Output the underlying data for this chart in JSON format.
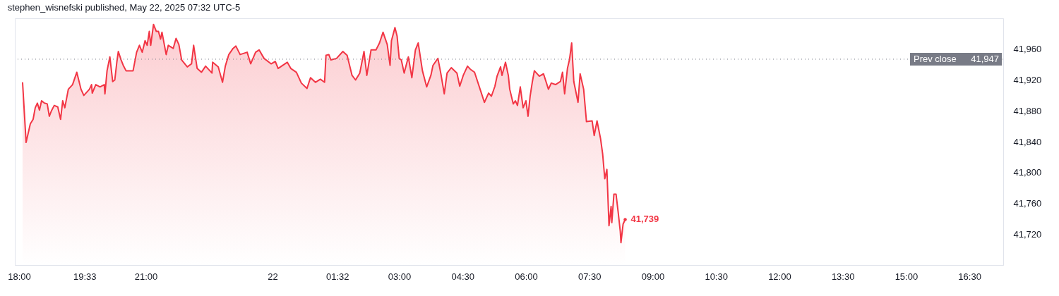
{
  "chart_data": {
    "type": "area",
    "title": "stephen_wisnefski published, May 22, 2025 07:32 UTC-5",
    "x": [
      "2025-05-21T18:05",
      "2025-05-21T18:10",
      "2025-05-21T18:16",
      "2025-05-21T18:20",
      "2025-05-21T18:23",
      "2025-05-21T18:26",
      "2025-05-21T18:29",
      "2025-05-21T18:32",
      "2025-05-21T18:36",
      "2025-05-21T18:40",
      "2025-05-21T18:43",
      "2025-05-21T18:46",
      "2025-05-21T18:50",
      "2025-05-21T18:55",
      "2025-05-21T18:59",
      "2025-05-21T19:02",
      "2025-05-21T19:05",
      "2025-05-21T19:10",
      "2025-05-21T19:16",
      "2025-05-21T19:22",
      "2025-05-21T19:28",
      "2025-05-21T19:32",
      "2025-05-21T19:40",
      "2025-05-21T19:43",
      "2025-05-21T19:44",
      "2025-05-21T19:49",
      "2025-05-21T19:55",
      "2025-05-21T20:01",
      "2025-05-21T20:02",
      "2025-05-21T20:05",
      "2025-05-21T20:09",
      "2025-05-21T20:13",
      "2025-05-21T20:16",
      "2025-05-21T20:19",
      "2025-05-21T20:21",
      "2025-05-21T20:25",
      "2025-05-21T20:28",
      "2025-05-21T20:32",
      "2025-05-21T20:42",
      "2025-05-21T20:47",
      "2025-05-21T20:51",
      "2025-05-21T20:55",
      "2025-05-21T20:59",
      "2025-05-21T21:02",
      "2025-05-21T21:05",
      "2025-05-21T21:07",
      "2025-05-21T21:11",
      "2025-05-21T21:15",
      "2025-05-21T21:18",
      "2025-05-21T21:21",
      "2025-05-21T21:23",
      "2025-05-21T21:29",
      "2025-05-21T21:32",
      "2025-05-21T21:39",
      "2025-05-21T21:43",
      "2025-05-21T21:47",
      "2025-05-21T21:51",
      "2025-05-21T21:59",
      "2025-05-21T22:05",
      "2025-05-21T22:08",
      "2025-05-21T22:13",
      "2025-05-21T22:19",
      "2025-05-21T22:25",
      "2025-05-21T22:34",
      "2025-05-21T22:35",
      "2025-05-21T22:43",
      "2025-05-21T22:49",
      "2025-05-21T22:53",
      "2025-05-21T22:58",
      "2025-05-21T23:04",
      "2025-05-21T23:08",
      "2025-05-21T23:14",
      "2025-05-21T23:24",
      "2025-05-21T23:29",
      "2025-05-21T23:36",
      "2025-05-21T23:41",
      "2025-05-21T23:48",
      "2025-05-21T23:58",
      "2025-05-22T00:04",
      "2025-05-22T00:08",
      "2025-05-22T00:21",
      "2025-05-22T00:26",
      "2025-05-22T00:34",
      "2025-05-22T00:41",
      "2025-05-22T00:49",
      "2025-05-22T00:54",
      "2025-05-22T01:01",
      "2025-05-22T01:08",
      "2025-05-22T01:14",
      "2025-05-22T01:16",
      "2025-05-22T01:20",
      "2025-05-22T01:23",
      "2025-05-22T01:31",
      "2025-05-22T01:40",
      "2025-05-22T01:46",
      "2025-05-22T01:53",
      "2025-05-22T01:58",
      "2025-05-22T02:04",
      "2025-05-22T02:10",
      "2025-05-22T02:14",
      "2025-05-22T02:20",
      "2025-05-22T02:27",
      "2025-05-22T02:32",
      "2025-05-22T02:37",
      "2025-05-22T02:43",
      "2025-05-22T02:47",
      "2025-05-22T02:49",
      "2025-05-22T02:54",
      "2025-05-22T02:57",
      "2025-05-22T03:00",
      "2025-05-22T03:03",
      "2025-05-22T03:07",
      "2025-05-22T03:13",
      "2025-05-22T03:18",
      "2025-05-22T03:23",
      "2025-05-22T03:27",
      "2025-05-22T03:33",
      "2025-05-22T03:39",
      "2025-05-22T03:45",
      "2025-05-22T03:48",
      "2025-05-22T03:55",
      "2025-05-22T03:59",
      "2025-05-22T04:04",
      "2025-05-22T04:08",
      "2025-05-22T04:14",
      "2025-05-22T04:22",
      "2025-05-22T04:26",
      "2025-05-22T04:31",
      "2025-05-22T04:37",
      "2025-05-22T04:41",
      "2025-05-22T04:47",
      "2025-05-22T04:56",
      "2025-05-22T05:01",
      "2025-05-22T05:07",
      "2025-05-22T05:11",
      "2025-05-22T05:16",
      "2025-05-22T05:19",
      "2025-05-22T05:24",
      "2025-05-22T05:26",
      "2025-05-22T05:31",
      "2025-05-22T05:35",
      "2025-05-22T05:37",
      "2025-05-22T05:42",
      "2025-05-22T05:45",
      "2025-05-22T05:48",
      "2025-05-22T05:52",
      "2025-05-22T05:56",
      "2025-05-22T06:00",
      "2025-05-22T06:03",
      "2025-05-22T06:06",
      "2025-05-22T06:09",
      "2025-05-22T06:12",
      "2025-05-22T06:19",
      "2025-05-22T06:25",
      "2025-05-22T06:32",
      "2025-05-22T06:36",
      "2025-05-22T06:42",
      "2025-05-22T06:49",
      "2025-05-22T06:52",
      "2025-05-22T06:55",
      "2025-05-22T06:59",
      "2025-05-22T07:02",
      "2025-05-22T07:05",
      "2025-05-22T07:08",
      "2025-05-22T07:14",
      "2025-05-22T07:17",
      "2025-05-22T07:22",
      "2025-05-22T07:26",
      "2025-05-22T07:34",
      "2025-05-22T07:37",
      "2025-05-22T07:41",
      "2025-05-22T07:46",
      "2025-05-22T07:49",
      "2025-05-22T07:52",
      "2025-05-22T07:55",
      "2025-05-22T07:58",
      "2025-05-22T08:01",
      "2025-05-22T08:02",
      "2025-05-22T08:05",
      "2025-05-22T08:08",
      "2025-05-22T08:11",
      "2025-05-22T08:14",
      "2025-05-22T08:15",
      "2025-05-22T08:18",
      "2025-05-22T08:21"
    ],
    "series": [
      {
        "color": "#f23645",
        "values": [
          41917,
          41839,
          41863,
          41869,
          41884,
          41890,
          41881,
          41893,
          41890,
          41889,
          41873,
          41880,
          41887,
          41885,
          41869,
          41893,
          41884,
          41908,
          41914,
          41930,
          41908,
          41900,
          41908,
          41914,
          41903,
          41914,
          41911,
          41914,
          41902,
          41932,
          41950,
          41918,
          41920,
          41944,
          41957,
          41946,
          41939,
          41932,
          41932,
          41956,
          41965,
          41956,
          41971,
          41965,
          41983,
          41965,
          41992,
          41983,
          41983,
          41973,
          41982,
          41953,
          41965,
          41961,
          41974,
          41966,
          41946,
          41937,
          41941,
          41965,
          41935,
          41930,
          41938,
          41929,
          41943,
          41937,
          41917,
          41938,
          41953,
          41961,
          41964,
          41953,
          41956,
          41941,
          41956,
          41959,
          41948,
          41941,
          41944,
          41935,
          41943,
          41935,
          41930,
          41916,
          41909,
          41923,
          41917,
          41921,
          41917,
          41952,
          41953,
          41946,
          41948,
          41957,
          41952,
          41926,
          41920,
          41929,
          41957,
          41926,
          41959,
          41959,
          41968,
          41982,
          41966,
          41939,
          41971,
          41988,
          41977,
          41948,
          41946,
          41929,
          41950,
          41923,
          41959,
          41968,
          41932,
          41911,
          41926,
          41939,
          41948,
          41929,
          41902,
          41929,
          41936,
          41929,
          41912,
          41926,
          41938,
          41934,
          41930,
          41905,
          41891,
          41903,
          41899,
          41912,
          41925,
          41937,
          41926,
          41943,
          41926,
          41908,
          41889,
          41893,
          41887,
          41911,
          41884,
          41893,
          41873,
          41899,
          41917,
          41932,
          41925,
          41928,
          41908,
          41916,
          41914,
          41918,
          41930,
          41902,
          41935,
          41947,
          41968,
          41918,
          41891,
          41928,
          41908,
          41866,
          41867,
          41848,
          41867,
          41844,
          41824,
          41792,
          41804,
          41731,
          41756,
          41735,
          41772,
          41772,
          41749,
          41724,
          41709,
          41733,
          41739
        ]
      }
    ],
    "xlim": [
      "2025-05-21T17:54",
      "2025-05-22T17:18"
    ],
    "xticks": [
      {
        "value": "2025-05-21T18:00",
        "label": "18:00"
      },
      {
        "value": "2025-05-21T19:33",
        "label": "19:33"
      },
      {
        "value": "2025-05-21T21:00",
        "label": "21:00"
      },
      {
        "value": "2025-05-22T00:00",
        "label": "22"
      },
      {
        "value": "2025-05-22T01:32",
        "label": "01:32"
      },
      {
        "value": "2025-05-22T03:00",
        "label": "03:00"
      },
      {
        "value": "2025-05-22T04:30",
        "label": "04:30"
      },
      {
        "value": "2025-05-22T06:00",
        "label": "06:00"
      },
      {
        "value": "2025-05-22T07:30",
        "label": "07:30"
      },
      {
        "value": "2025-05-22T09:00",
        "label": "09:00"
      },
      {
        "value": "2025-05-22T10:30",
        "label": "10:30"
      },
      {
        "value": "2025-05-22T12:00",
        "label": "12:00"
      },
      {
        "value": "2025-05-22T13:30",
        "label": "13:30"
      },
      {
        "value": "2025-05-22T15:00",
        "label": "15:00"
      },
      {
        "value": "2025-05-22T16:30",
        "label": "16:30"
      }
    ],
    "ylim": [
      41680,
      42000
    ],
    "yticks": [
      {
        "value": 41720,
        "label": "41,720"
      },
      {
        "value": 41760,
        "label": "41,760"
      },
      {
        "value": 41800,
        "label": "41,800"
      },
      {
        "value": 41840,
        "label": "41,840"
      },
      {
        "value": 41880,
        "label": "41,880"
      },
      {
        "value": 41920,
        "label": "41,920"
      },
      {
        "value": 41960,
        "label": "41,960"
      }
    ],
    "ref_lines": [
      {
        "axis": "y",
        "value": 41947,
        "label": "Prev close",
        "color": "#787b86",
        "line_style": "dotted"
      }
    ],
    "annotations": [
      {
        "text": "41,739",
        "x": "2025-05-22T08:21",
        "y": 41739
      },
      {
        "text": "41,947",
        "x": "2025-05-22T17:18",
        "y": 41947
      }
    ]
  }
}
